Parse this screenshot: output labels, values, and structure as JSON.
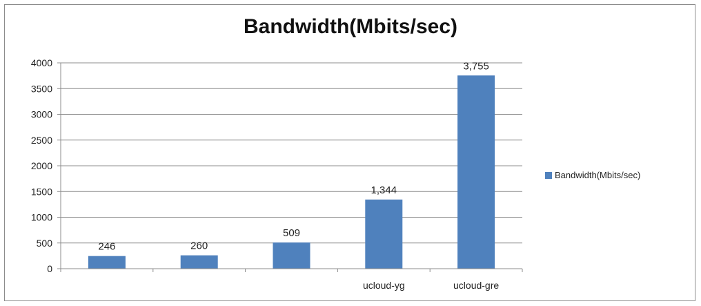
{
  "chart_data": {
    "type": "bar",
    "title": "Bandwidth(Mbits/sec)",
    "categories": [
      "",
      "",
      "",
      "ucloud-yg",
      "ucloud-gre"
    ],
    "series": [
      {
        "name": "Bandwidth(Mbits/sec)",
        "values": [
          246,
          260,
          509,
          1344,
          3755
        ],
        "data_labels": [
          "246",
          "260",
          "509",
          "1,344",
          "3,755"
        ],
        "color": "#4f81bd"
      }
    ],
    "xlabel": "",
    "ylabel": "",
    "ylim": [
      0,
      4000
    ],
    "yticks": [
      "0",
      "500",
      "1000",
      "1500",
      "2000",
      "2500",
      "3000",
      "3500",
      "4000"
    ],
    "grid": true,
    "legend": "right"
  }
}
